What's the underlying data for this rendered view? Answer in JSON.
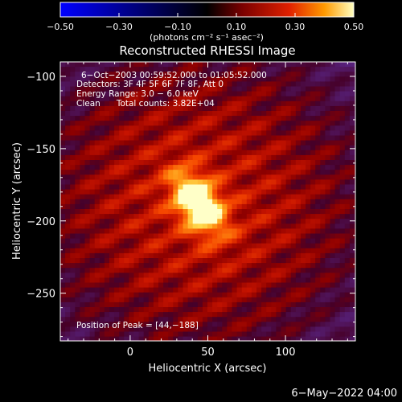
{
  "chart_data": {
    "type": "heatmap",
    "title": "Reconstructed RHESSI Image",
    "xlabel": "Heliocentric X (arcsec)",
    "ylabel": "Heliocentric Y (arcsec)",
    "xlim": [
      -45,
      145
    ],
    "ylim": [
      -283,
      -90
    ],
    "xticks": [
      0,
      50,
      100
    ],
    "yticks": [
      -100,
      -150,
      -200,
      -250
    ],
    "colorbar": {
      "ticks": [
        -0.5,
        -0.3,
        -0.1,
        0.1,
        0.3,
        0.5
      ],
      "tick_labels": [
        "−0.50",
        "−0.30",
        "−0.10",
        "0.10",
        "0.30",
        "0.50"
      ],
      "unit_label": "(photons cm⁻² s⁻¹ asec⁻²)",
      "range": [
        -0.5,
        0.5
      ]
    },
    "annotations": [
      "6−Oct−2003 00:59:52.000 to 01:05:52.000",
      "Detectors: 3F 4F 5F 6F 7F 8F, Att 0",
      "Energy Range: 3.0 − 6.0 keV",
      "Clean      Total counts: 3.82E+04"
    ],
    "peak_label": "Position of Peak = [44,−188]",
    "peak": [
      44,
      -188
    ]
  },
  "footer": {
    "date": "6−May−2022 04:00"
  }
}
